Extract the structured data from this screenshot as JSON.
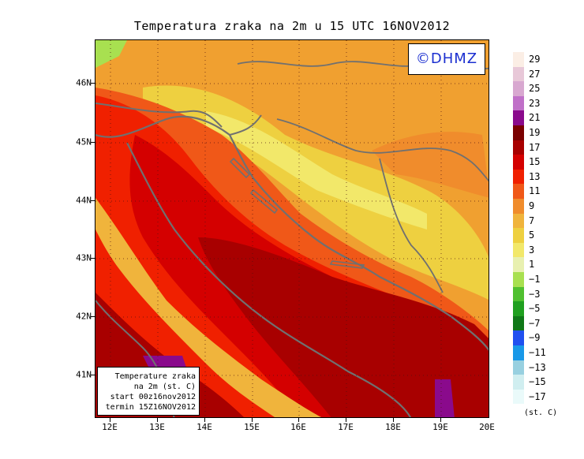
{
  "title": "Temperatura zraka na 2m u 15 UTC 16NOV2012",
  "copyright": "©DHMZ",
  "info": {
    "line1": "Temperature zraka",
    "line2": "na 2m (st. C)",
    "line3": "start 00z16nov2012",
    "line4": "termin 15Z16NOV2012"
  },
  "lat_labels": [
    "46N",
    "45N",
    "44N",
    "43N",
    "42N",
    "41N"
  ],
  "lon_labels": [
    "12E",
    "13E",
    "14E",
    "15E",
    "16E",
    "17E",
    "18E",
    "19E",
    "20E"
  ],
  "legend": {
    "labels": [
      "29",
      "27",
      "25",
      "23",
      "21",
      "19",
      "17",
      "15",
      "13",
      "11",
      "9",
      "7",
      "5",
      "3",
      "1",
      "−1",
      "−3",
      "−5",
      "−7",
      "−9",
      "−11",
      "−13",
      "−15",
      "−17"
    ],
    "colors": [
      "#fbeee5",
      "#e8c8d8",
      "#d8a8d0",
      "#c070c8",
      "#8a0a8c",
      "#7a0000",
      "#a80000",
      "#d40000",
      "#f02000",
      "#f05818",
      "#f08c2c",
      "#f0b43c",
      "#eed040",
      "#f2e86a",
      "#e8f0b0",
      "#a8e050",
      "#50c030",
      "#20a020",
      "#107818",
      "#2050f0",
      "#1898e8",
      "#98d0e0",
      "#d0eef0",
      "#eafafa"
    ],
    "units": "(st. C)"
  }
}
